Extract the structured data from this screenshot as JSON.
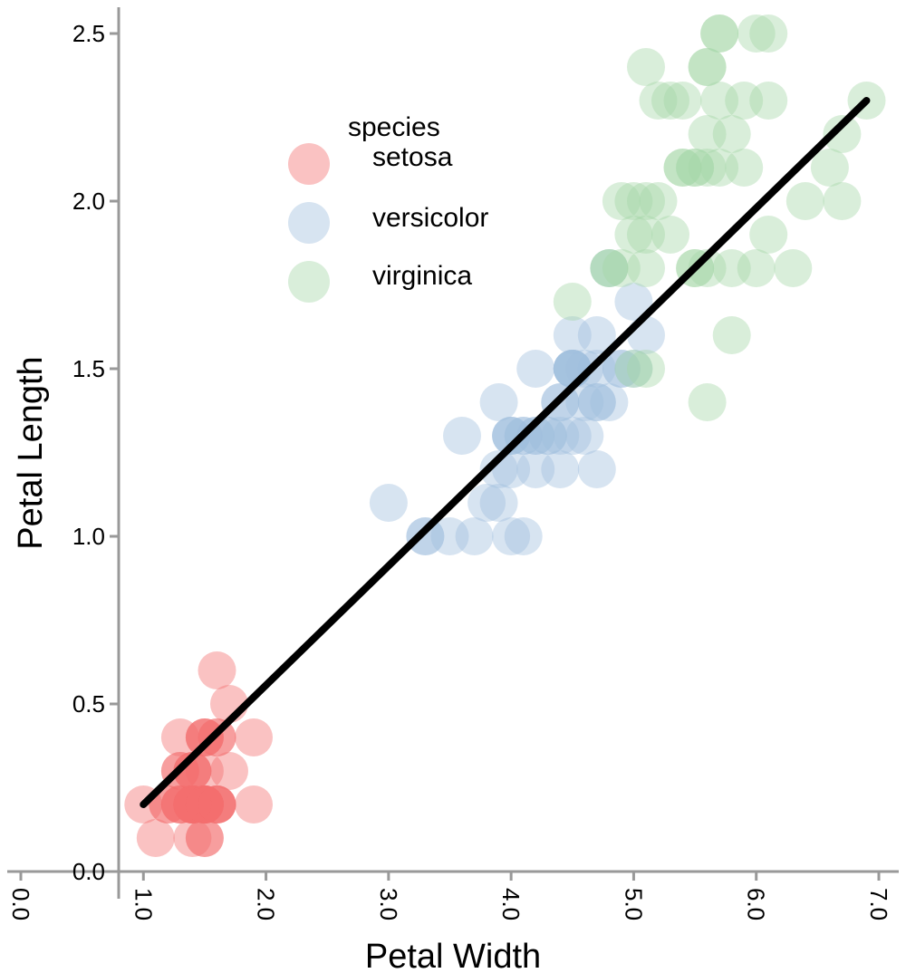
{
  "chart_data": {
    "type": "scatter",
    "title": "",
    "xlabel": "Petal Width",
    "ylabel": "Petal Length",
    "xlim": [
      0.0,
      7.0
    ],
    "ylim": [
      0.0,
      2.5
    ],
    "x_ticks": [
      "0.0",
      "1.0",
      "2.0",
      "3.0",
      "4.0",
      "5.0",
      "6.0",
      "7.0"
    ],
    "y_ticks": [
      "0.0",
      "0.5",
      "1.0",
      "1.5",
      "2.0",
      "2.5"
    ],
    "legend": {
      "title": "species",
      "placement": "top-left",
      "entries": [
        "setosa",
        "versicolor",
        "virginica"
      ]
    },
    "colors": {
      "setosa": "#f26d6d",
      "versicolor": "#9fbfde",
      "virginica": "#a5d6a7",
      "trendline": "#000000"
    },
    "trendline": {
      "x": [
        1.0,
        6.9
      ],
      "y": [
        0.2,
        2.3
      ]
    },
    "series": [
      {
        "name": "setosa",
        "x": [
          1.0,
          1.1,
          1.2,
          1.3,
          1.3,
          1.4,
          1.4,
          1.4,
          1.5,
          1.5,
          1.5,
          1.6,
          1.6,
          1.7,
          1.7,
          1.9,
          1.9,
          1.5,
          1.6,
          1.4,
          1.2,
          1.3,
          1.4,
          1.5,
          1.6,
          1.3,
          1.4,
          1.5,
          1.5,
          1.6,
          1.5,
          1.4,
          1.3,
          1.4,
          1.6,
          1.5,
          1.4,
          1.5,
          1.3,
          1.4,
          1.5,
          1.4,
          1.6,
          1.5,
          1.4,
          1.5,
          1.4,
          1.5,
          1.4,
          1.5
        ],
        "y": [
          0.2,
          0.1,
          0.2,
          0.4,
          0.3,
          0.2,
          0.3,
          0.2,
          0.2,
          0.4,
          0.1,
          0.2,
          0.6,
          0.5,
          0.3,
          0.4,
          0.2,
          0.2,
          0.4,
          0.2,
          0.2,
          0.2,
          0.1,
          0.2,
          0.2,
          0.3,
          0.2,
          0.4,
          0.2,
          0.2,
          0.1,
          0.2,
          0.2,
          0.3,
          0.2,
          0.2,
          0.2,
          0.3,
          0.2,
          0.2,
          0.2,
          0.2,
          0.4,
          0.2,
          0.2,
          0.4,
          0.2,
          0.2,
          0.3,
          0.2
        ]
      },
      {
        "name": "versicolor",
        "x": [
          3.0,
          3.3,
          3.3,
          3.5,
          3.6,
          3.7,
          3.8,
          3.9,
          3.9,
          3.9,
          4.0,
          4.0,
          4.0,
          4.0,
          4.1,
          4.1,
          4.2,
          4.2,
          4.2,
          4.2,
          4.3,
          4.3,
          4.4,
          4.4,
          4.4,
          4.4,
          4.5,
          4.5,
          4.5,
          4.5,
          4.5,
          4.5,
          4.6,
          4.6,
          4.6,
          4.7,
          4.7,
          4.7,
          4.7,
          4.7,
          4.8,
          4.8,
          4.9,
          4.9,
          5.0,
          5.0,
          5.1,
          4.5,
          4.1,
          4.0
        ],
        "y": [
          1.1,
          1.0,
          1.0,
          1.0,
          1.3,
          1.0,
          1.1,
          1.4,
          1.2,
          1.1,
          1.3,
          1.0,
          1.2,
          1.3,
          1.3,
          1.0,
          1.5,
          1.3,
          1.2,
          1.3,
          1.3,
          1.3,
          1.4,
          1.3,
          1.2,
          1.4,
          1.5,
          1.5,
          1.6,
          1.3,
          1.5,
          1.5,
          1.5,
          1.4,
          1.3,
          1.4,
          1.4,
          1.2,
          1.5,
          1.6,
          1.4,
          1.8,
          1.5,
          1.5,
          1.7,
          1.5,
          1.6,
          1.5,
          1.3,
          1.3
        ]
      },
      {
        "name": "virginica",
        "x": [
          4.5,
          4.8,
          4.8,
          4.9,
          4.9,
          5.0,
          5.0,
          5.0,
          5.1,
          5.1,
          5.1,
          5.1,
          5.1,
          5.2,
          5.2,
          5.3,
          5.3,
          5.4,
          5.4,
          5.5,
          5.5,
          5.5,
          5.6,
          5.6,
          5.6,
          5.6,
          5.6,
          5.7,
          5.7,
          5.7,
          5.8,
          5.8,
          5.8,
          5.9,
          5.9,
          6.0,
          6.0,
          6.1,
          6.1,
          6.1,
          6.3,
          6.4,
          6.6,
          6.7,
          6.7,
          6.9,
          5.4,
          5.5,
          5.7,
          5.6
        ],
        "y": [
          1.7,
          1.8,
          1.8,
          1.8,
          2.0,
          2.0,
          1.9,
          1.5,
          2.4,
          2.0,
          1.9,
          1.8,
          1.5,
          2.3,
          2.0,
          2.3,
          1.9,
          2.1,
          2.3,
          1.8,
          2.1,
          1.8,
          2.4,
          2.2,
          2.1,
          1.8,
          1.4,
          2.5,
          2.3,
          2.1,
          2.2,
          1.8,
          1.6,
          2.3,
          2.1,
          2.5,
          1.8,
          2.5,
          2.3,
          1.9,
          1.8,
          2.0,
          2.1,
          2.2,
          2.0,
          2.3,
          2.1,
          2.1,
          2.5,
          2.4
        ]
      }
    ]
  }
}
